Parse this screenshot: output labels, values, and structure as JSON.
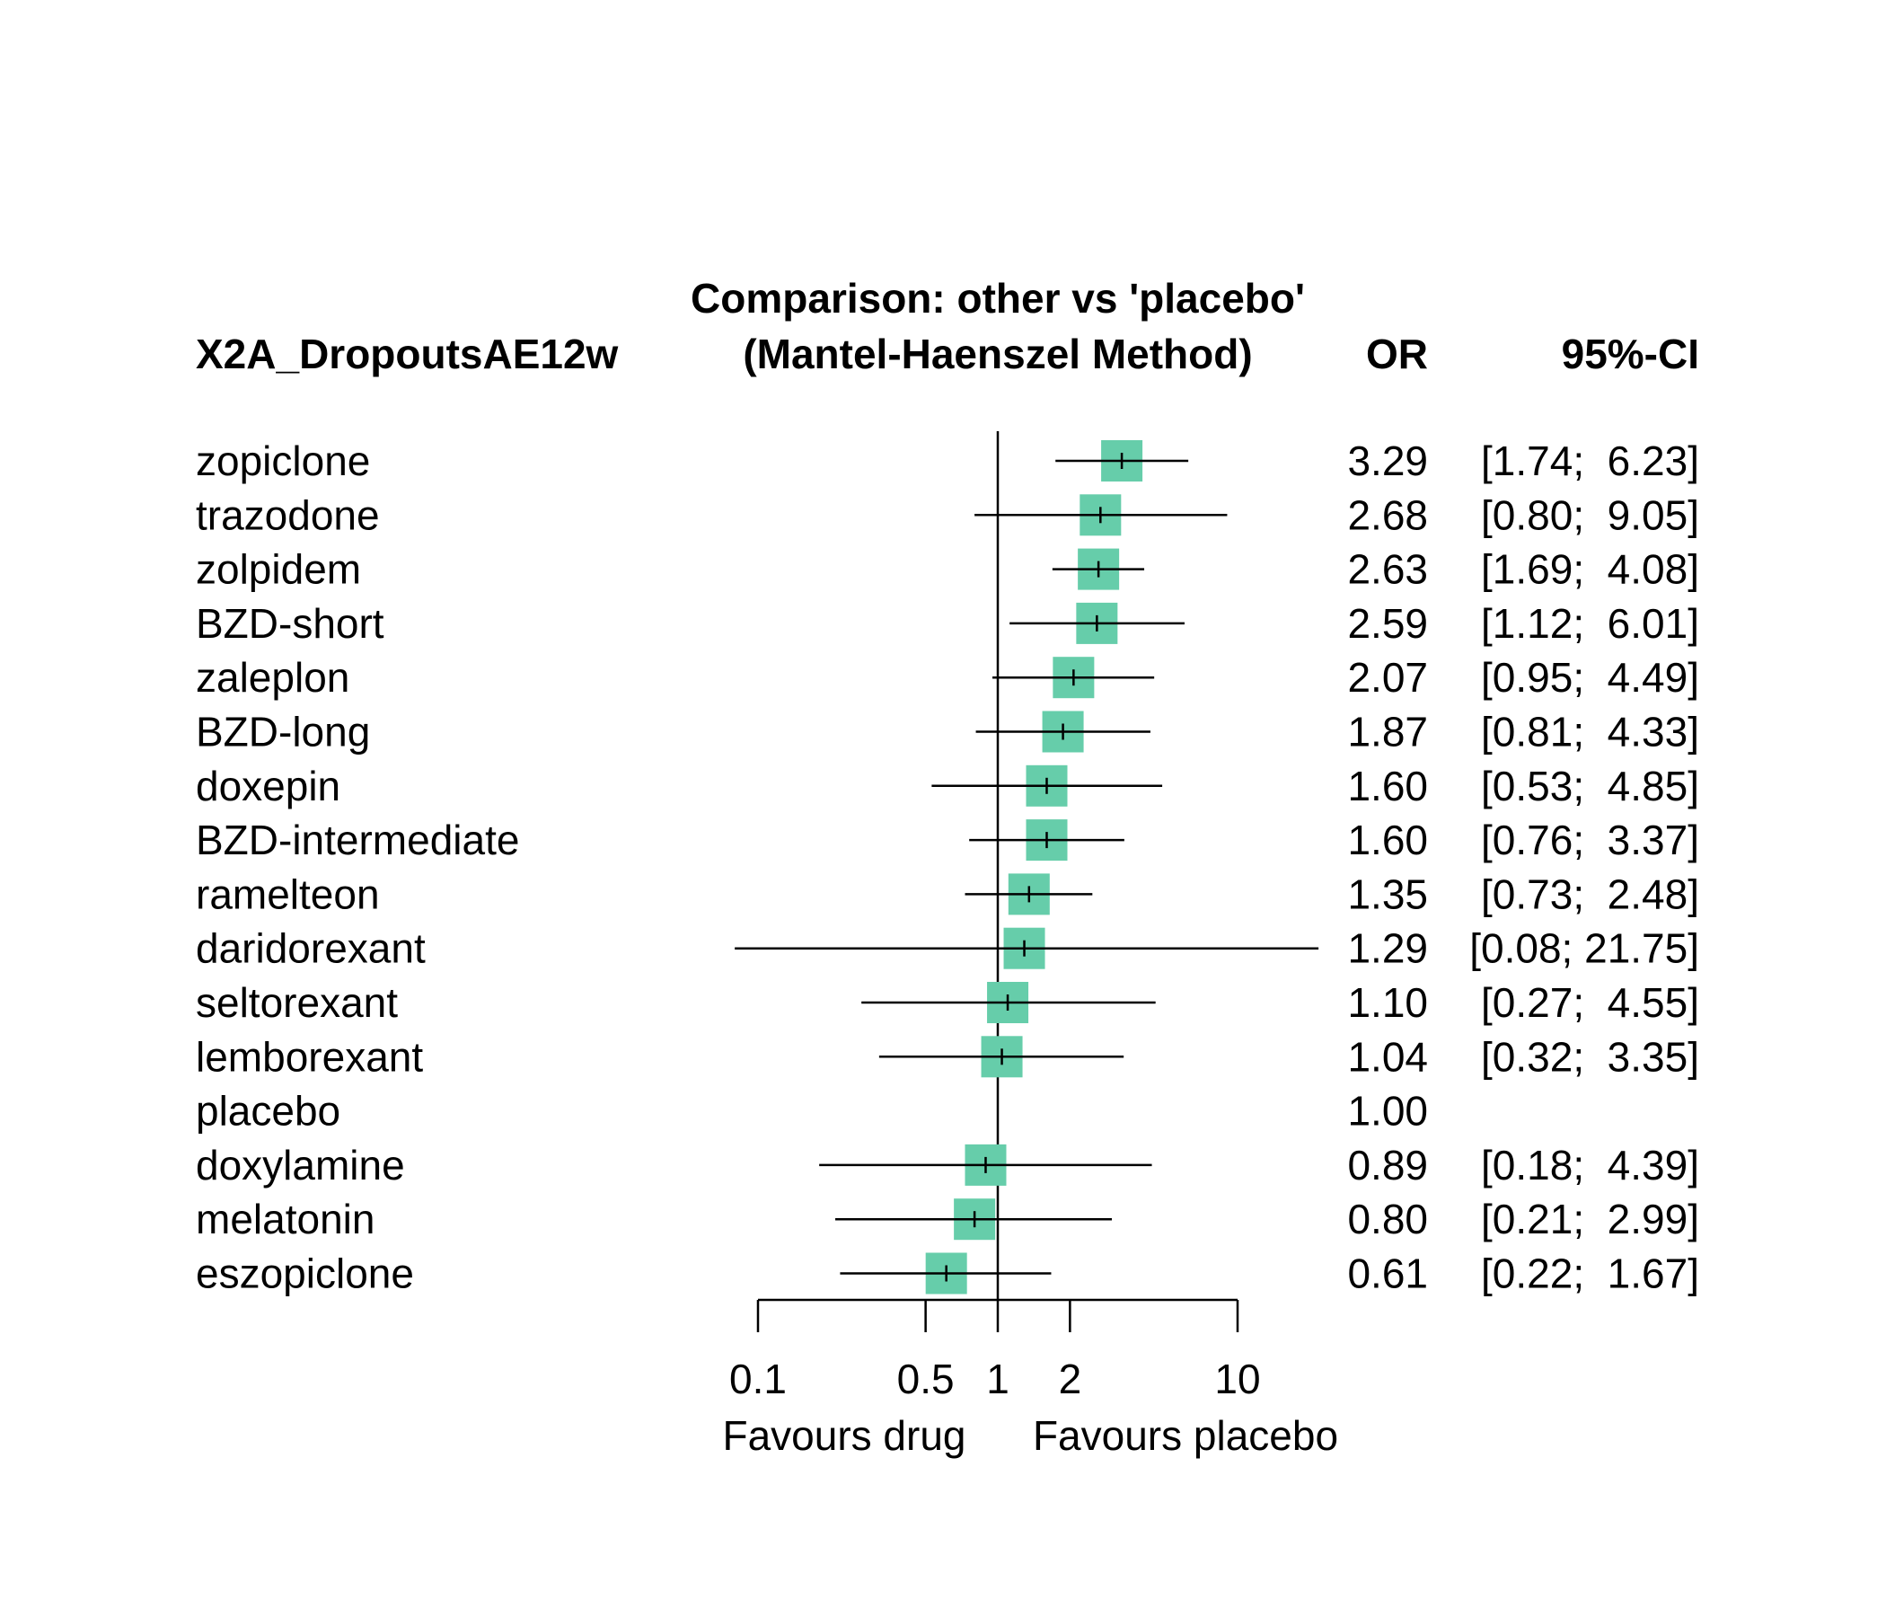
{
  "chart_data": {
    "type": "forest",
    "outcome_label": "X2A_DropoutsAE12w",
    "title_line1": "Comparison: other vs 'placebo'",
    "title_line2": "(Mantel-Haenszel Method)",
    "effect_header": "OR",
    "ci_header": "95%-CI",
    "x_scale": "log",
    "xlim": [
      0.1,
      10
    ],
    "reference_value": 1,
    "x_ticks": [
      0.1,
      0.5,
      1,
      2,
      10
    ],
    "x_tick_labels": [
      "0.1",
      "0.5",
      "1",
      "2",
      "10"
    ],
    "left_label": "Favours drug",
    "right_label": "Favours placebo",
    "marker_color": "#66cdaa",
    "rows": [
      {
        "name": "zopiclone",
        "or": 3.29,
        "lower": 1.74,
        "upper": 6.23,
        "or_text": "3.29",
        "ci_text": "[1.74;  6.23]"
      },
      {
        "name": "trazodone",
        "or": 2.68,
        "lower": 0.8,
        "upper": 9.05,
        "or_text": "2.68",
        "ci_text": "[0.80;  9.05]"
      },
      {
        "name": "zolpidem",
        "or": 2.63,
        "lower": 1.69,
        "upper": 4.08,
        "or_text": "2.63",
        "ci_text": "[1.69;  4.08]"
      },
      {
        "name": "BZD-short",
        "or": 2.59,
        "lower": 1.12,
        "upper": 6.01,
        "or_text": "2.59",
        "ci_text": "[1.12;  6.01]"
      },
      {
        "name": "zaleplon",
        "or": 2.07,
        "lower": 0.95,
        "upper": 4.49,
        "or_text": "2.07",
        "ci_text": "[0.95;  4.49]"
      },
      {
        "name": "BZD-long",
        "or": 1.87,
        "lower": 0.81,
        "upper": 4.33,
        "or_text": "1.87",
        "ci_text": "[0.81;  4.33]"
      },
      {
        "name": "doxepin",
        "or": 1.6,
        "lower": 0.53,
        "upper": 4.85,
        "or_text": "1.60",
        "ci_text": "[0.53;  4.85]"
      },
      {
        "name": "BZD-intermediate",
        "or": 1.6,
        "lower": 0.76,
        "upper": 3.37,
        "or_text": "1.60",
        "ci_text": "[0.76;  3.37]"
      },
      {
        "name": "ramelteon",
        "or": 1.35,
        "lower": 0.73,
        "upper": 2.48,
        "or_text": "1.35",
        "ci_text": "[0.73;  2.48]"
      },
      {
        "name": "daridorexant",
        "or": 1.29,
        "lower": 0.08,
        "upper": 21.75,
        "or_text": "1.29",
        "ci_text": "[0.08; 21.75]"
      },
      {
        "name": "seltorexant",
        "or": 1.1,
        "lower": 0.27,
        "upper": 4.55,
        "or_text": "1.10",
        "ci_text": "[0.27;  4.55]"
      },
      {
        "name": "lemborexant",
        "or": 1.04,
        "lower": 0.32,
        "upper": 3.35,
        "or_text": "1.04",
        "ci_text": "[0.32;  3.35]"
      },
      {
        "name": "placebo",
        "or": 1.0,
        "lower": null,
        "upper": null,
        "or_text": "1.00",
        "ci_text": ""
      },
      {
        "name": "doxylamine",
        "or": 0.89,
        "lower": 0.18,
        "upper": 4.39,
        "or_text": "0.89",
        "ci_text": "[0.18;  4.39]"
      },
      {
        "name": "melatonin",
        "or": 0.8,
        "lower": 0.21,
        "upper": 2.99,
        "or_text": "0.80",
        "ci_text": "[0.21;  2.99]"
      },
      {
        "name": "eszopiclone",
        "or": 0.61,
        "lower": 0.22,
        "upper": 1.67,
        "or_text": "0.61",
        "ci_text": "[0.22;  1.67]"
      }
    ]
  }
}
